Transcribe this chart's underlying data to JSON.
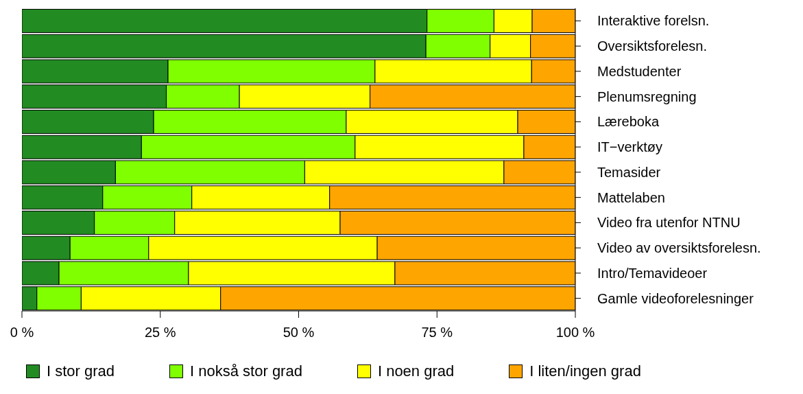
{
  "chart_data": {
    "type": "bar",
    "orientation": "horizontal",
    "stacked": true,
    "legend": "bottom",
    "categories": [
      "Interaktive forelsn.",
      "Oversiktsforelesn.",
      "Medstudenter",
      "Plenumsregning",
      "Læreboka",
      "IT−verktøy",
      "Temasider",
      "Mattelaben",
      "Video fra utenfor NTNU",
      "Video av oversiktsforelesn.",
      "Intro/Temavideoer",
      "Gamle videoforelesninger"
    ],
    "series": [
      {
        "name": "I stor grad",
        "color": "#228b22",
        "values": [
          73.2,
          73.0,
          26.4,
          26.1,
          23.8,
          21.6,
          16.9,
          14.6,
          13.1,
          8.7,
          6.7,
          2.7
        ]
      },
      {
        "name": "I nokså stor grad",
        "color": "#7fff00",
        "values": [
          12.1,
          11.6,
          37.4,
          13.2,
          34.8,
          38.6,
          34.2,
          16.1,
          14.5,
          14.2,
          23.4,
          8.0
        ]
      },
      {
        "name": "I noen grad",
        "color": "#ffff00",
        "values": [
          6.9,
          7.3,
          28.3,
          23.6,
          31.0,
          30.5,
          36.0,
          24.9,
          29.9,
          41.3,
          37.3,
          25.2
        ]
      },
      {
        "name": "I liten/ingen grad",
        "color": "#ffa500",
        "values": [
          7.8,
          8.1,
          7.9,
          37.1,
          10.4,
          9.3,
          12.9,
          44.4,
          42.5,
          35.8,
          32.6,
          64.1
        ]
      }
    ],
    "xlim": [
      0,
      100
    ],
    "xticks": [
      {
        "value": 0,
        "label": "0 %"
      },
      {
        "value": 25,
        "label": "25 %"
      },
      {
        "value": 50,
        "label": "50 %"
      },
      {
        "value": 75,
        "label": "75 %"
      },
      {
        "value": 100,
        "label": "100 %"
      }
    ]
  }
}
